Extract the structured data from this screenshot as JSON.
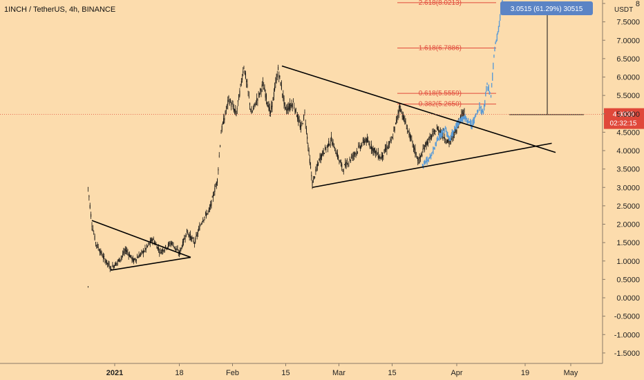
{
  "chart_data": {
    "type": "candlestick",
    "title": "1INCH / TetherUS, 4h, BINANCE",
    "unit": "USDT",
    "y_range": [
      -1.8,
      8.1
    ],
    "y_ticks": [
      "-1.5000",
      "-1.0000",
      "-0.5000",
      "0.0000",
      "0.5000",
      "1.0000",
      "1.5000",
      "2.0000",
      "2.5000",
      "3.0000",
      "3.5000",
      "4.0000",
      "4.5000",
      "5.0000",
      "5.5000",
      "6.0000",
      "6.5000",
      "7.0000",
      "7.5000",
      "8"
    ],
    "x_range": [
      "2020-12-19",
      "2021-05-10"
    ],
    "x_ticks": [
      {
        "date": "2021-01-01",
        "label": "2021"
      },
      {
        "date": "2021-01-18",
        "label": "18"
      },
      {
        "date": "2021-02-01",
        "label": "Feb"
      },
      {
        "date": "2021-02-15",
        "label": "15"
      },
      {
        "date": "2021-03-01",
        "label": "Mar"
      },
      {
        "date": "2021-03-15",
        "label": "15"
      },
      {
        "date": "2021-04-01",
        "label": "Apr"
      },
      {
        "date": "2021-04-19",
        "label": "19"
      },
      {
        "date": "2021-05-01",
        "label": "May"
      }
    ],
    "price_path": [
      [
        "2020-12-25",
        0.3
      ],
      [
        "2020-12-25",
        3.0
      ],
      [
        "2020-12-26",
        2.0
      ],
      [
        "2020-12-27",
        1.5
      ],
      [
        "2020-12-29",
        1.1
      ],
      [
        "2020-12-31",
        0.8
      ],
      [
        "2021-01-02",
        1.0
      ],
      [
        "2021-01-04",
        1.3
      ],
      [
        "2021-01-06",
        1.0
      ],
      [
        "2021-01-09",
        1.3
      ],
      [
        "2021-01-11",
        1.6
      ],
      [
        "2021-01-13",
        1.25
      ],
      [
        "2021-01-16",
        1.5
      ],
      [
        "2021-01-18",
        1.2
      ],
      [
        "2021-01-20",
        1.8
      ],
      [
        "2021-01-22",
        1.5
      ],
      [
        "2021-01-24",
        2.1
      ],
      [
        "2021-01-26",
        2.4
      ],
      [
        "2021-01-28",
        3.2
      ],
      [
        "2021-01-29",
        4.5
      ],
      [
        "2021-01-31",
        5.4
      ],
      [
        "2021-02-02",
        5.0
      ],
      [
        "2021-02-04",
        6.3
      ],
      [
        "2021-02-06",
        5.0
      ],
      [
        "2021-02-09",
        5.8
      ],
      [
        "2021-02-11",
        5.0
      ],
      [
        "2021-02-13",
        6.2
      ],
      [
        "2021-02-15",
        5.1
      ],
      [
        "2021-02-17",
        5.3
      ],
      [
        "2021-02-19",
        4.6
      ],
      [
        "2021-02-20",
        5.0
      ],
      [
        "2021-02-22",
        3.1
      ],
      [
        "2021-02-24",
        3.8
      ],
      [
        "2021-02-27",
        4.3
      ],
      [
        "2021-03-02",
        3.5
      ],
      [
        "2021-03-05",
        3.9
      ],
      [
        "2021-03-08",
        4.3
      ],
      [
        "2021-03-12",
        3.8
      ],
      [
        "2021-03-15",
        4.3
      ],
      [
        "2021-03-17",
        5.2
      ],
      [
        "2021-03-19",
        4.6
      ],
      [
        "2021-03-22",
        3.7
      ],
      [
        "2021-03-24",
        4.2
      ],
      [
        "2021-03-27",
        4.6
      ],
      [
        "2021-03-30",
        4.2
      ],
      [
        "2021-04-01",
        4.6
      ],
      [
        "2021-04-02",
        4.9
      ],
      [
        "2021-04-03",
        5.1
      ]
    ],
    "projection_path": [
      [
        "2021-03-23",
        3.6
      ],
      [
        "2021-03-25",
        3.8
      ],
      [
        "2021-03-27",
        4.3
      ],
      [
        "2021-03-29",
        4.6
      ],
      [
        "2021-03-30",
        4.3
      ],
      [
        "2021-04-01",
        4.7
      ],
      [
        "2021-04-03",
        4.9
      ],
      [
        "2021-04-05",
        4.7
      ],
      [
        "2021-04-07",
        5.2
      ],
      [
        "2021-04-08",
        5.0
      ],
      [
        "2021-04-09",
        5.8
      ],
      [
        "2021-04-10",
        5.5
      ],
      [
        "2021-04-11",
        6.8
      ],
      [
        "2021-04-12",
        7.3
      ],
      [
        "2021-04-13",
        8.1
      ]
    ],
    "trendlines": [
      {
        "from": [
          "2020-12-26",
          2.1
        ],
        "to": [
          "2021-01-21",
          1.1
        ]
      },
      {
        "from": [
          "2020-12-31",
          0.75
        ],
        "to": [
          "2021-01-21",
          1.1
        ]
      },
      {
        "from": [
          "2021-02-14",
          6.3
        ],
        "to": [
          "2021-04-27",
          3.95
        ]
      },
      {
        "from": [
          "2021-02-22",
          3.0
        ],
        "to": [
          "2021-04-26",
          4.2
        ]
      }
    ],
    "fib_levels": [
      {
        "label": "2.618(8.0213)",
        "value": 8.0213
      },
      {
        "label": "1.618(6.7886)",
        "value": 6.7886
      },
      {
        "label": "0.618(5.5559)",
        "value": 5.5559
      },
      {
        "label": "0.382(5.2650)",
        "value": 5.265
      }
    ],
    "current_price": {
      "value": "4.9839",
      "countdown": "02:32:15"
    },
    "measurement": {
      "label": "3.0515 (61.29%) 30515",
      "from_value": 4.98,
      "to_value": 8.03
    },
    "colors": {
      "background": "#FCDCAD",
      "candles": "#111111",
      "projection": "#5B9BD5",
      "trendline": "#000000",
      "fib": "#E0483A",
      "current_price": "#E0483A",
      "badge": "#5B84C5"
    }
  }
}
